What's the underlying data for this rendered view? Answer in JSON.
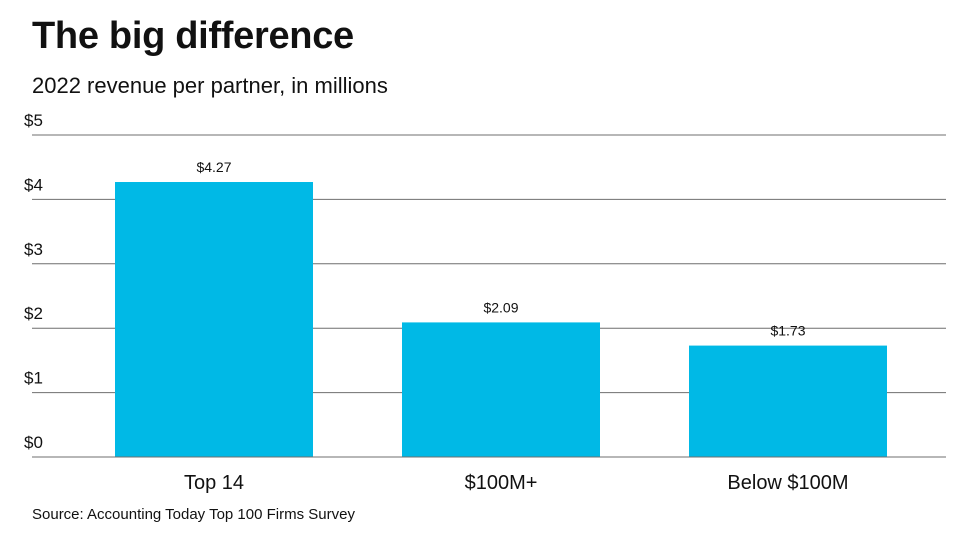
{
  "header": {
    "title": "The big difference",
    "subtitle": "2022 revenue per partner, in millions"
  },
  "footer": {
    "source": "Source: Accounting Today Top 100 Firms Survey"
  },
  "colors": {
    "bar": "#00b9e6",
    "grid": "#6f6f6f",
    "text": "#111111"
  },
  "chart_data": {
    "type": "bar",
    "title": "The big difference",
    "subtitle": "2022 revenue per partner, in millions",
    "categories": [
      "Top 14",
      "$100M+",
      "Below $100M"
    ],
    "values": [
      4.27,
      2.09,
      1.73
    ],
    "value_labels": [
      "$4.27",
      "$2.09",
      "$1.73"
    ],
    "ylim": [
      0,
      5
    ],
    "yticks": [
      0,
      1,
      2,
      3,
      4,
      5
    ],
    "ytick_labels": [
      "$0",
      "$1",
      "$2",
      "$3",
      "$4",
      "$5"
    ],
    "xlabel": "",
    "ylabel": "",
    "grid": true,
    "legend": "none"
  }
}
